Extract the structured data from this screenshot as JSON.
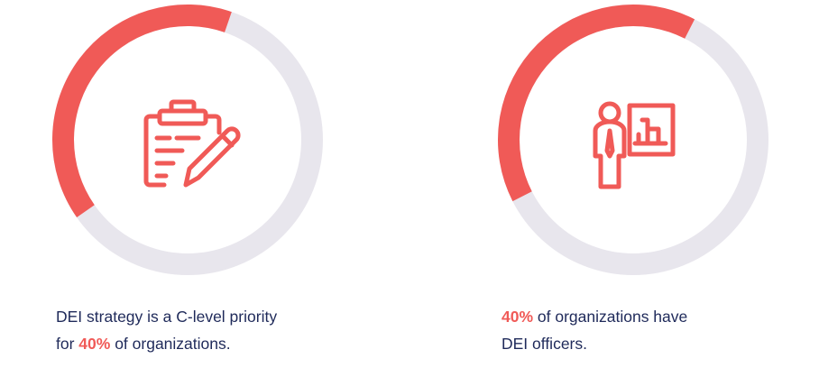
{
  "colors": {
    "accent": "#f05a57",
    "track": "#e8e6ed",
    "text": "#1f2a5a"
  },
  "chart_data": [
    {
      "type": "pie",
      "variant": "donut",
      "values": [
        40,
        60
      ],
      "icon": "clipboard-edit-icon",
      "caption": {
        "before_line1": "DEI strategy is a C-level priority",
        "before_line2": "for ",
        "highlight": "40%",
        "after": " of organizations."
      }
    },
    {
      "type": "pie",
      "variant": "donut",
      "values": [
        40,
        60
      ],
      "icon": "presenter-whiteboard-icon",
      "caption": {
        "highlight": "40%",
        "after_line1": " of organizations have",
        "after_line2": "DEI officers."
      }
    }
  ]
}
